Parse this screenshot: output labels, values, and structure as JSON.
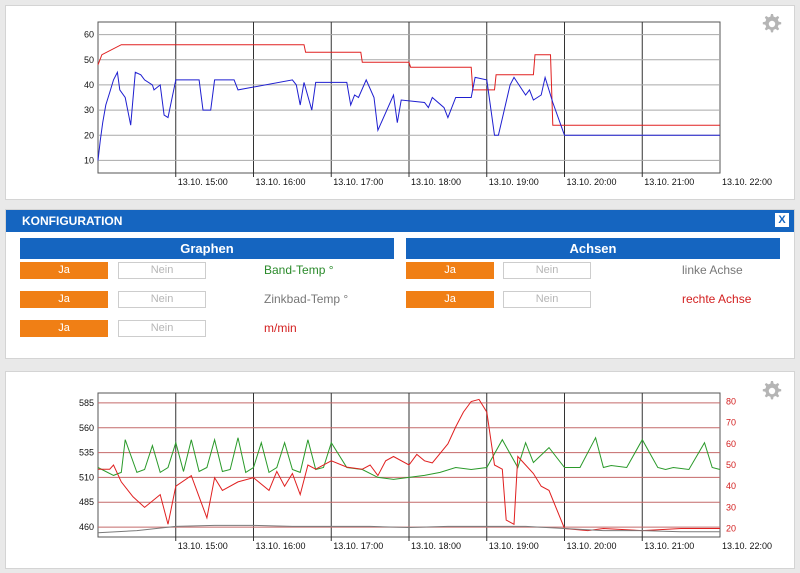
{
  "colors": {
    "accent_blue": "#1565c0",
    "button_orange": "#f07f15",
    "series_blue": "#1f1fd0",
    "series_red": "#e02020",
    "series_green": "#2a9a2a",
    "series_grey": "#7a7a7a",
    "label_green": "#2a8a2a",
    "label_red": "#d32020",
    "label_grey": "#777777"
  },
  "top_chart": {
    "settings_icon": "gear-icon",
    "chart_data": {
      "type": "line",
      "x_ticks": [
        "13.10. 15:00",
        "13.10. 16:00",
        "13.10. 17:00",
        "13.10. 18:00",
        "13.10. 19:00",
        "13.10. 20:00",
        "13.10. 21:00",
        "13.10. 22:00"
      ],
      "y_ticks": [
        "10",
        "20",
        "30",
        "40",
        "50",
        "60"
      ],
      "ylim": [
        5,
        65
      ],
      "x_range": [
        "13.10. 14:00",
        "13.10. 22:00"
      ],
      "grid": true,
      "series": [
        {
          "color": "#e02020",
          "x": [
            14.0,
            14.05,
            14.3,
            16.65,
            16.67,
            17.38,
            17.4,
            18.0,
            18.02,
            18.8,
            18.82,
            19.1,
            19.12,
            19.6,
            19.62,
            19.82,
            19.85,
            20.0,
            22.0
          ],
          "y": [
            48,
            52,
            56,
            56,
            53,
            53,
            49,
            49,
            47,
            47,
            38,
            38,
            44,
            44,
            52,
            52,
            24,
            24,
            24
          ]
        },
        {
          "color": "#1f1fd0",
          "x": [
            14.0,
            14.03,
            14.06,
            14.1,
            14.15,
            14.2,
            14.25,
            14.28,
            14.35,
            14.42,
            14.48,
            14.55,
            14.6,
            14.7,
            14.72,
            14.8,
            14.85,
            14.9,
            15.0,
            15.3,
            15.35,
            15.45,
            15.5,
            15.75,
            15.8,
            16.5,
            16.55,
            16.6,
            16.65,
            16.75,
            16.8,
            17.2,
            17.25,
            17.3,
            17.35,
            17.45,
            17.55,
            17.6,
            17.8,
            17.85,
            17.9,
            18.2,
            18.25,
            18.3,
            18.45,
            18.5,
            18.6,
            18.8,
            18.85,
            19.0,
            19.1,
            19.15,
            19.3,
            19.35,
            19.5,
            19.55,
            19.6,
            19.7,
            19.75,
            19.82,
            19.85,
            20.0,
            22.0
          ],
          "y": [
            10,
            18,
            25,
            32,
            37,
            42,
            45,
            38,
            35,
            24,
            45,
            44,
            42,
            40,
            38,
            40,
            28,
            27,
            42,
            42,
            30,
            30,
            42,
            42,
            38,
            42,
            40,
            32,
            41,
            30,
            41,
            41,
            32,
            36,
            35,
            42,
            35,
            22,
            36,
            25,
            34,
            33,
            31,
            35,
            31,
            27,
            35,
            35,
            43,
            42,
            20,
            20,
            40,
            43,
            36,
            38,
            34,
            36,
            43,
            36,
            33,
            20,
            20
          ]
        }
      ]
    }
  },
  "config": {
    "title": "KONFIGURATION",
    "close_label": "X",
    "graphen": {
      "title": "Graphen",
      "rows": [
        {
          "yes": "Ja",
          "no": "Nein",
          "label": "Band-Temp °"
        },
        {
          "yes": "Ja",
          "no": "Nein",
          "label": "Zinkbad-Temp °"
        },
        {
          "yes": "Ja",
          "no": "Nein",
          "label": "m/min"
        }
      ]
    },
    "achsen": {
      "title": "Achsen",
      "rows": [
        {
          "yes": "Ja",
          "no": "Nein",
          "label": "linke Achse"
        },
        {
          "yes": "Ja",
          "no": "Nein",
          "label": "rechte Achse"
        }
      ]
    }
  },
  "bottom_chart": {
    "settings_icon": "gear-icon",
    "chart_data": {
      "type": "line",
      "x_ticks": [
        "13.10. 15:00",
        "13.10. 16:00",
        "13.10. 17:00",
        "13.10. 18:00",
        "13.10. 19:00",
        "13.10. 20:00",
        "13.10. 21:00",
        "13.10. 22:00"
      ],
      "y_left_ticks": [
        "460",
        "485",
        "510",
        "535",
        "560",
        "585"
      ],
      "y_right_ticks": [
        "20",
        "30",
        "40",
        "50",
        "60",
        "70",
        "80"
      ],
      "ylim_left": [
        450,
        595
      ],
      "ylim_right": [
        16,
        84
      ],
      "grid": true,
      "series": [
        {
          "axis": "left",
          "color": "#2a9a2a",
          "x": [
            14.0,
            14.2,
            14.3,
            14.35,
            14.5,
            14.6,
            14.7,
            14.8,
            14.9,
            15.0,
            15.1,
            15.2,
            15.3,
            15.4,
            15.5,
            15.6,
            15.7,
            15.8,
            15.9,
            16.0,
            16.1,
            16.2,
            16.3,
            16.4,
            16.5,
            16.6,
            16.7,
            16.8,
            16.9,
            17.0,
            17.2,
            17.4,
            17.6,
            17.8,
            18.0,
            18.2,
            18.4,
            18.6,
            18.8,
            19.0,
            19.2,
            19.4,
            19.5,
            19.6,
            19.8,
            20.0,
            20.2,
            20.4,
            20.5,
            20.6,
            20.8,
            21.0,
            21.2,
            21.3,
            21.4,
            21.6,
            21.8,
            21.9,
            22.0
          ],
          "y": [
            520,
            512,
            515,
            548,
            515,
            518,
            542,
            515,
            520,
            545,
            516,
            548,
            516,
            520,
            548,
            516,
            518,
            550,
            515,
            520,
            545,
            515,
            520,
            545,
            518,
            515,
            548,
            518,
            520,
            545,
            520,
            518,
            510,
            508,
            510,
            512,
            515,
            520,
            518,
            520,
            548,
            520,
            545,
            525,
            540,
            520,
            520,
            550,
            520,
            522,
            520,
            548,
            520,
            518,
            520,
            518,
            545,
            520,
            518
          ]
        },
        {
          "axis": "right",
          "color": "#e02020",
          "x": [
            14.0,
            14.15,
            14.2,
            14.3,
            14.45,
            14.6,
            14.8,
            14.9,
            15.0,
            15.2,
            15.3,
            15.4,
            15.5,
            15.6,
            15.8,
            16.0,
            16.2,
            16.3,
            16.4,
            16.5,
            16.6,
            16.7,
            16.8,
            17.0,
            17.2,
            17.4,
            17.5,
            17.6,
            17.7,
            17.8,
            18.0,
            18.1,
            18.2,
            18.3,
            18.5,
            18.6,
            18.7,
            18.8,
            18.9,
            19.0,
            19.1,
            19.2,
            19.25,
            19.35,
            19.4,
            19.5,
            19.6,
            19.7,
            19.8,
            20.0,
            20.3,
            20.5,
            21.0,
            21.5,
            22.0
          ],
          "y": [
            48,
            48,
            50,
            42,
            35,
            30,
            36,
            22,
            40,
            45,
            35,
            25,
            44,
            38,
            42,
            44,
            38,
            47,
            40,
            46,
            36,
            50,
            48,
            52,
            49,
            48,
            50,
            45,
            52,
            54,
            50,
            55,
            52,
            51,
            60,
            68,
            75,
            80,
            81,
            75,
            50,
            48,
            24,
            22,
            54,
            50,
            46,
            40,
            38,
            20,
            19,
            20,
            19,
            20,
            20
          ]
        },
        {
          "axis": "right",
          "color": "#7a7a7a",
          "x": [
            14.0,
            14.5,
            15.0,
            15.5,
            16.0,
            16.5,
            17.0,
            17.5,
            18.0,
            18.5,
            19.0,
            19.5,
            20.0,
            20.5,
            21.0,
            21.5,
            22.0
          ],
          "y": [
            18,
            19,
            21,
            21.5,
            21.5,
            21,
            21,
            21,
            20.5,
            21,
            21,
            21,
            20,
            19,
            19,
            18.5,
            18.5
          ]
        }
      ]
    }
  }
}
